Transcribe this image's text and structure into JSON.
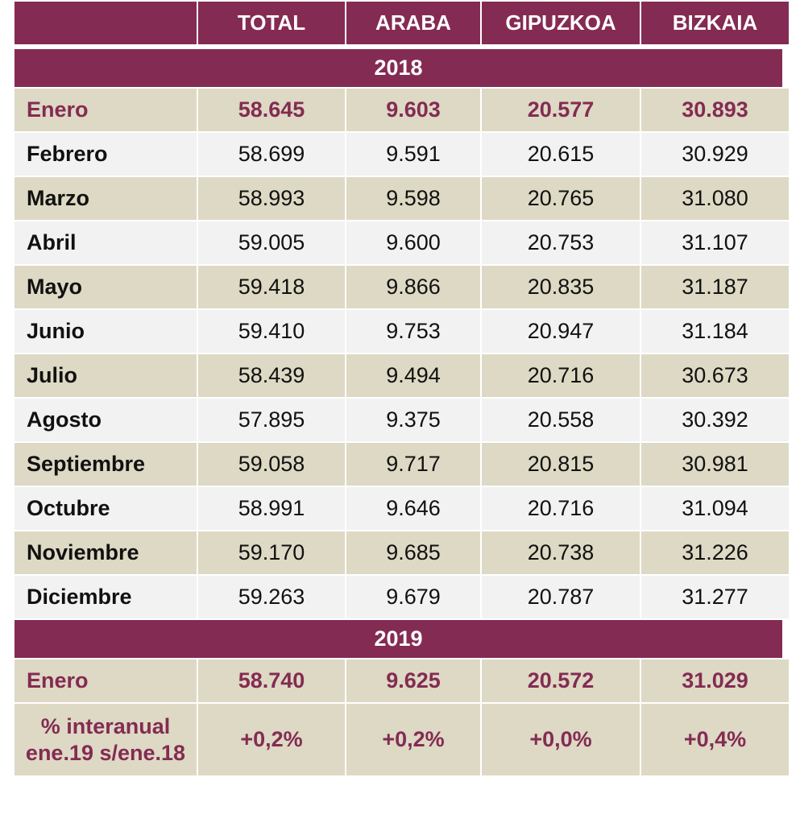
{
  "header": {
    "corner": "",
    "columns": [
      "TOTAL",
      "ARABA",
      "GIPUZKOA",
      "BIZKAIA"
    ]
  },
  "sections": [
    {
      "year": "2018",
      "rows": [
        {
          "label": "Enero",
          "values": [
            "58.645",
            "9.603",
            "20.577",
            "30.893"
          ],
          "highlight": true
        },
        {
          "label": "Febrero",
          "values": [
            "58.699",
            "9.591",
            "20.615",
            "30.929"
          ]
        },
        {
          "label": "Marzo",
          "values": [
            "58.993",
            "9.598",
            "20.765",
            "31.080"
          ]
        },
        {
          "label": "Abril",
          "values": [
            "59.005",
            "9.600",
            "20.753",
            "31.107"
          ]
        },
        {
          "label": "Mayo",
          "values": [
            "59.418",
            "9.866",
            "20.835",
            "31.187"
          ]
        },
        {
          "label": "Junio",
          "values": [
            "59.410",
            "9.753",
            "20.947",
            "31.184"
          ]
        },
        {
          "label": "Julio",
          "values": [
            "58.439",
            "9.494",
            "20.716",
            "30.673"
          ]
        },
        {
          "label": "Agosto",
          "values": [
            "57.895",
            "9.375",
            "20.558",
            "30.392"
          ]
        },
        {
          "label": "Septiembre",
          "values": [
            "59.058",
            "9.717",
            "20.815",
            "30.981"
          ]
        },
        {
          "label": "Octubre",
          "values": [
            "58.991",
            "9.646",
            "20.716",
            "31.094"
          ]
        },
        {
          "label": "Noviembre",
          "values": [
            "59.170",
            "9.685",
            "20.738",
            "31.226"
          ]
        },
        {
          "label": "Diciembre",
          "values": [
            "59.263",
            "9.679",
            "20.787",
            "31.277"
          ]
        }
      ]
    },
    {
      "year": "2019",
      "rows": [
        {
          "label": "Enero",
          "values": [
            "58.740",
            "9.625",
            "20.572",
            "31.029"
          ],
          "highlight": true
        }
      ]
    }
  ],
  "yoy": {
    "label_line1": "% interanual",
    "label_line2": "ene.19 s/ene.18",
    "values": [
      "+0,2%",
      "+0,2%",
      "+0,0%",
      "+0,4%"
    ]
  },
  "colors": {
    "header_bg": "#842b53",
    "beige": "#ddd9c4",
    "grey": "#f2f2f2",
    "accent_text": "#842b53"
  }
}
